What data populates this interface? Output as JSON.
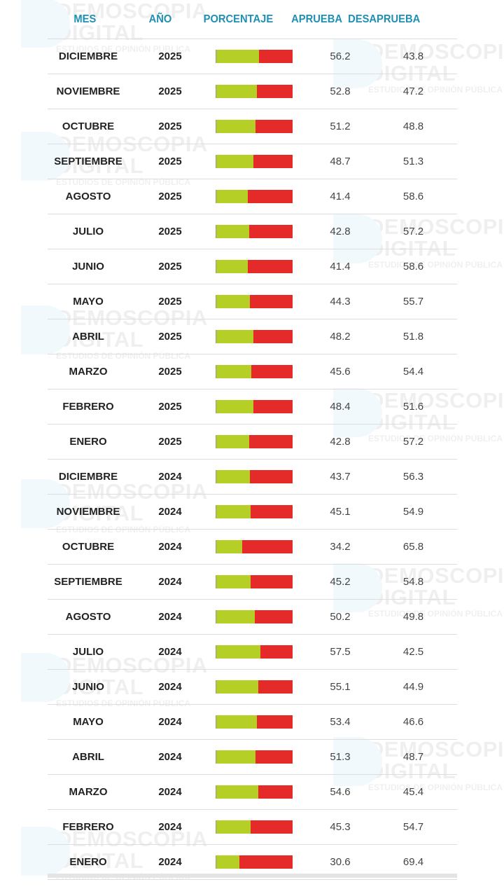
{
  "watermark": {
    "line1": "DEMOSCOPIA",
    "line2": "DIGITAL",
    "line3": "ESTUDIOS DE OPINIÓN PÚBLICA"
  },
  "colors": {
    "aprueba": "#b5cf26",
    "desaprueba": "#e52a2a",
    "header": "#1f8fb3"
  },
  "chart_data": {
    "type": "table",
    "columns": [
      "MES",
      "AÑO",
      "PORCENTAJE",
      "APRUEBA",
      "DESAPRUEBA"
    ],
    "rows": [
      {
        "mes": "DICIEMBRE",
        "anio": "2025",
        "aprueba": 56.2,
        "desaprueba": 43.8
      },
      {
        "mes": "NOVIEMBRE",
        "anio": "2025",
        "aprueba": 52.8,
        "desaprueba": 47.2
      },
      {
        "mes": "OCTUBRE",
        "anio": "2025",
        "aprueba": 51.2,
        "desaprueba": 48.8
      },
      {
        "mes": "SEPTIEMBRE",
        "anio": "2025",
        "aprueba": 48.7,
        "desaprueba": 51.3
      },
      {
        "mes": "AGOSTO",
        "anio": "2025",
        "aprueba": 41.4,
        "desaprueba": 58.6
      },
      {
        "mes": "JULIO",
        "anio": "2025",
        "aprueba": 42.8,
        "desaprueba": 57.2
      },
      {
        "mes": "JUNIO",
        "anio": "2025",
        "aprueba": 41.4,
        "desaprueba": 58.6
      },
      {
        "mes": "MAYO",
        "anio": "2025",
        "aprueba": 44.3,
        "desaprueba": 55.7
      },
      {
        "mes": "ABRIL",
        "anio": "2025",
        "aprueba": 48.2,
        "desaprueba": 51.8
      },
      {
        "mes": "MARZO",
        "anio": "2025",
        "aprueba": 45.6,
        "desaprueba": 54.4
      },
      {
        "mes": "FEBRERO",
        "anio": "2025",
        "aprueba": 48.4,
        "desaprueba": 51.6
      },
      {
        "mes": "ENERO",
        "anio": "2025",
        "aprueba": 42.8,
        "desaprueba": 57.2
      },
      {
        "mes": "DICIEMBRE",
        "anio": "2024",
        "aprueba": 43.7,
        "desaprueba": 56.3
      },
      {
        "mes": "NOVIEMBRE",
        "anio": "2024",
        "aprueba": 45.1,
        "desaprueba": 54.9
      },
      {
        "mes": "OCTUBRE",
        "anio": "2024",
        "aprueba": 34.2,
        "desaprueba": 65.8
      },
      {
        "mes": "SEPTIEMBRE",
        "anio": "2024",
        "aprueba": 45.2,
        "desaprueba": 54.8
      },
      {
        "mes": "AGOSTO",
        "anio": "2024",
        "aprueba": 50.2,
        "desaprueba": 49.8
      },
      {
        "mes": "JULIO",
        "anio": "2024",
        "aprueba": 57.5,
        "desaprueba": 42.5
      },
      {
        "mes": "JUNIO",
        "anio": "2024",
        "aprueba": 55.1,
        "desaprueba": 44.9
      },
      {
        "mes": "MAYO",
        "anio": "2024",
        "aprueba": 53.4,
        "desaprueba": 46.6
      },
      {
        "mes": "ABRIL",
        "anio": "2024",
        "aprueba": 51.3,
        "desaprueba": 48.7
      },
      {
        "mes": "MARZO",
        "anio": "2024",
        "aprueba": 54.6,
        "desaprueba": 45.4
      },
      {
        "mes": "FEBRERO",
        "anio": "2024",
        "aprueba": 45.3,
        "desaprueba": 54.7
      },
      {
        "mes": "ENERO",
        "anio": "2024",
        "aprueba": 30.6,
        "desaprueba": 69.4
      }
    ]
  }
}
